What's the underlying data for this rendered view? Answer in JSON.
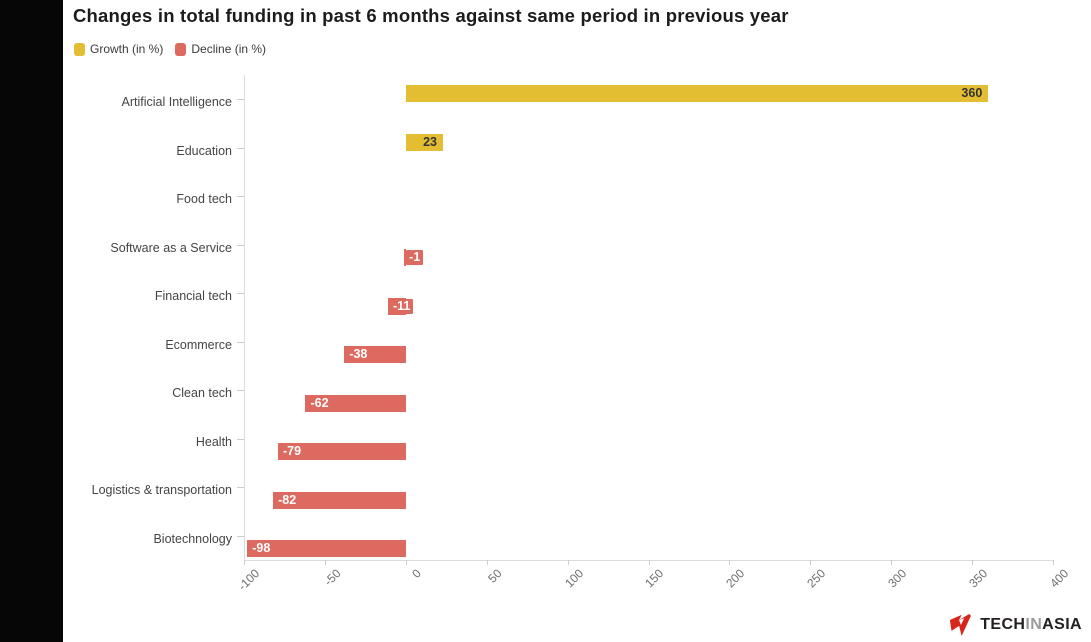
{
  "header": {
    "title": "Changes in total funding in past 6 months against same period in previous year"
  },
  "legend": [
    {
      "label": "Growth (in %)",
      "color": "#e3bd32"
    },
    {
      "label": "Decline (in %)",
      "color": "#dd6a60"
    }
  ],
  "chart_data": {
    "type": "bar",
    "orientation": "horizontal",
    "title": "Changes in total funding in past 6 months against same period in previous year",
    "categories": [
      "Artificial Intelligence",
      "Education",
      "Food tech",
      "Software as a Service",
      "Financial tech",
      "Ecommerce",
      "Clean tech",
      "Health",
      "Logistics & transportation",
      "Biotechnology"
    ],
    "series": [
      {
        "name": "Growth (in %)",
        "color": "#e3bd32",
        "values": [
          360,
          23,
          null,
          null,
          null,
          null,
          null,
          null,
          null,
          null
        ]
      },
      {
        "name": "Decline (in %)",
        "color": "#dd6a60",
        "values": [
          null,
          null,
          null,
          -1,
          -11,
          -38,
          -62,
          -79,
          -82,
          -98
        ]
      }
    ],
    "xlim": [
      -100,
      400
    ],
    "xticks": [
      "-100",
      "-50",
      "0",
      "50",
      "100",
      "150",
      "200",
      "250",
      "300",
      "350",
      "400"
    ],
    "grid": false,
    "legend_position": "top-left",
    "bar_labels": true
  },
  "branding": {
    "logo_part_1": "TECH",
    "logo_part_2": "IN",
    "logo_part_3": "ASIA",
    "logo_color": "#d8261c"
  }
}
